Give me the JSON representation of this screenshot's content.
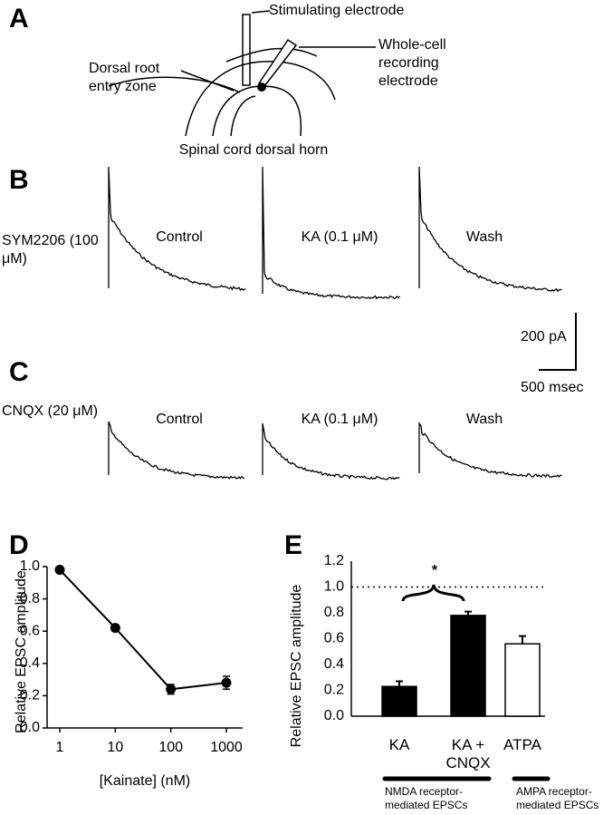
{
  "panels": {
    "a": {
      "label": "A",
      "stimulating": "Stimulating electrode",
      "recording": "Whole-cell recording electrode",
      "root": "Dorsal root entry zone",
      "caption": "Spinal cord dorsal horn"
    },
    "b": {
      "label": "B",
      "condition": "SYM2206 (100 μM)",
      "traces": [
        "Control",
        "KA (0.1 μM)",
        "Wash"
      ]
    },
    "scale": {
      "current": "200 pA",
      "time": "500 msec"
    },
    "c": {
      "label": "C",
      "condition": "CNQX (20 μM)",
      "traces": [
        "Control",
        "KA (0.1 μM)",
        "Wash"
      ]
    }
  },
  "chart_data": [
    {
      "type": "line",
      "label": "D",
      "x_label": "[Kainate] (nM)",
      "y_label": "Relative EPSC amplitude",
      "x": [
        1,
        10,
        100,
        1000
      ],
      "values": [
        0.98,
        0.62,
        0.24,
        0.28
      ],
      "errors": [
        0.01,
        0.02,
        0.03,
        0.04
      ],
      "xscale": "log",
      "xlim": [
        1,
        1000
      ],
      "xticks": [
        1,
        10,
        100,
        1000
      ],
      "ylim": [
        0,
        1
      ],
      "yticks": [
        {
          "value": 0,
          "label": "0.0"
        },
        {
          "value": 0.2,
          "label": "0.2"
        },
        {
          "value": 0.4,
          "label": "0.4"
        },
        {
          "value": 0.6,
          "label": "0.6"
        },
        {
          "value": 0.8,
          "label": "0.8"
        },
        {
          "value": 1,
          "label": "1.0"
        }
      ],
      "color": "#000000"
    },
    {
      "type": "bar",
      "label": "E",
      "y_label": "Relative EPSC amplitude",
      "categories": [
        "KA",
        "KA + CNQX",
        "ATPA"
      ],
      "values": [
        0.23,
        0.78,
        0.56
      ],
      "errors": [
        0.04,
        0.03,
        0.06
      ],
      "colors": [
        "#000000",
        "#000000",
        "#ffffff"
      ],
      "ylim": [
        0,
        1.2
      ],
      "yticks": [
        {
          "value": 0,
          "label": "0.0"
        },
        {
          "value": 0.2,
          "label": "0.2"
        },
        {
          "value": 0.4,
          "label": "0.4"
        },
        {
          "value": 0.6,
          "label": "0.6"
        },
        {
          "value": 0.8,
          "label": "0.8"
        },
        {
          "value": 1,
          "label": "1.0"
        },
        {
          "value": 1.2,
          "label": "1.2"
        }
      ],
      "reference_line": 1,
      "annotation": "*",
      "group_labels": [
        "NMDA receptor-mediated EPSCs",
        "AMPA receptor-mediated EPSCs"
      ]
    }
  ]
}
